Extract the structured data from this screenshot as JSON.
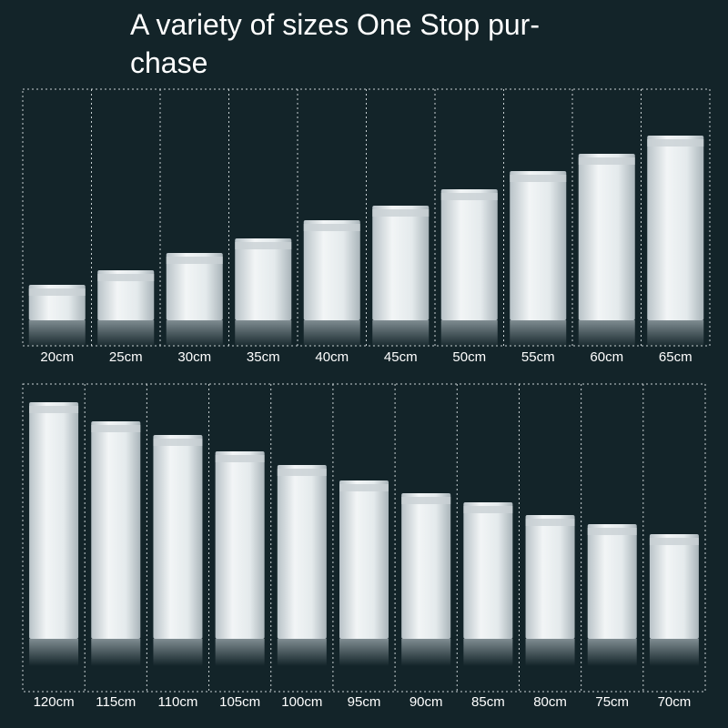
{
  "header": {
    "title_lines": [
      "A variety of sizes One Stop pur-",
      "chase"
    ]
  },
  "rows": [
    {
      "labels": [
        "20cm",
        "25cm",
        "30cm",
        "35cm",
        "40cm",
        "45cm",
        "50cm",
        "55cm",
        "60cm",
        "65cm"
      ]
    },
    {
      "labels": [
        "120cm",
        "115cm",
        "110cm",
        "105cm",
        "100cm",
        "95cm",
        "90cm",
        "85cm",
        "80cm",
        "75cm",
        "70cm"
      ]
    }
  ]
}
